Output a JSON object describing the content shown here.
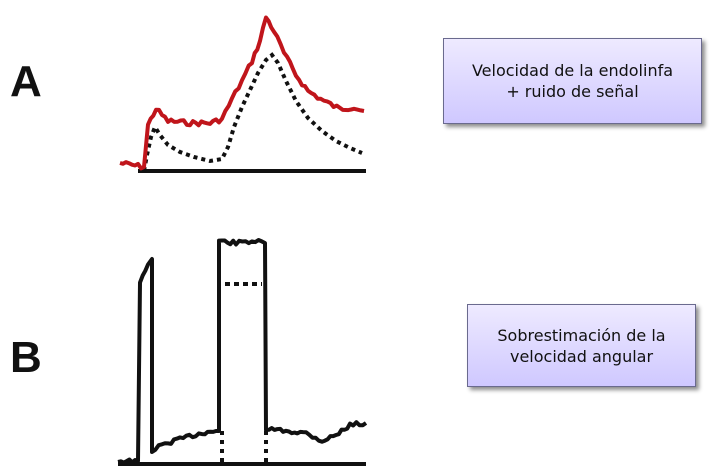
{
  "panel_a": {
    "letter": "A",
    "note_lines": [
      "Velocidad de la endolinfa",
      "+ ruido de señal"
    ],
    "colors": {
      "signal": "#c0151b",
      "reference": "#111111",
      "baseline": "#111111"
    }
  },
  "panel_b": {
    "letter": "B",
    "note_lines": [
      "Sobrestimación de la",
      "velocidad angular"
    ],
    "colors": {
      "signal": "#111111",
      "reference": "#111111",
      "baseline": "#111111"
    }
  },
  "box_colors": {
    "top": "#eeeaff",
    "bottom": "#cfc8ff",
    "border": "#6a6a8e"
  }
}
